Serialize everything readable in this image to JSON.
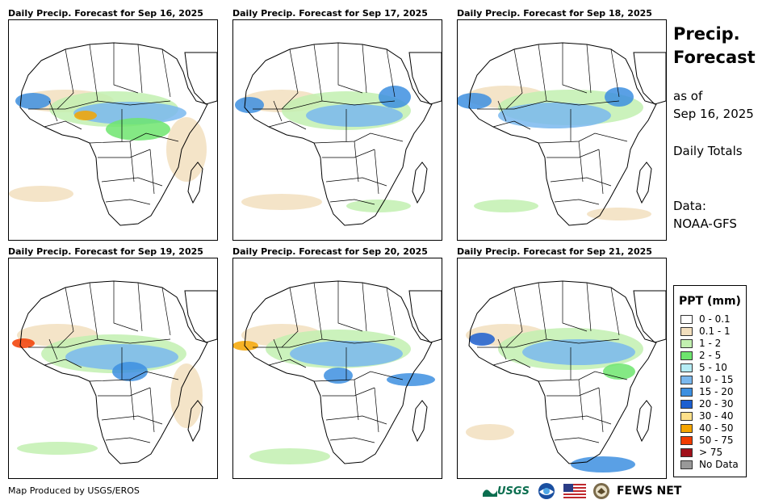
{
  "panels": [
    {
      "title": "Daily Precip. Forecast for Sep 16, 2025"
    },
    {
      "title": "Daily Precip. Forecast for Sep 17, 2025"
    },
    {
      "title": "Daily Precip. Forecast for Sep 18, 2025"
    },
    {
      "title": "Daily Precip. Forecast for Sep 19, 2025"
    },
    {
      "title": "Daily Precip. Forecast for Sep 20, 2025"
    },
    {
      "title": "Daily Precip. Forecast for Sep 21, 2025"
    }
  ],
  "side": {
    "title_line1": "Precip.",
    "title_line2": "Forecast",
    "asof_line1": "as of",
    "asof_line2": "Sep 16, 2025",
    "totals": "Daily Totals",
    "data_line1": "Data:",
    "data_line2": "NOAA-GFS"
  },
  "legend": {
    "title": "PPT (mm)",
    "items": [
      {
        "label": "0 - 0.1",
        "color": "#ffffff"
      },
      {
        "label": "0.1 - 1",
        "color": "#f2dfbe"
      },
      {
        "label": "1 - 2",
        "color": "#c2f0b0"
      },
      {
        "label": "2 - 5",
        "color": "#6ee56e"
      },
      {
        "label": "5 - 10",
        "color": "#b5ecf5"
      },
      {
        "label": "10 - 15",
        "color": "#7ab8ee"
      },
      {
        "label": "15 - 20",
        "color": "#3d8fe0"
      },
      {
        "label": "20 - 30",
        "color": "#1c5fd0"
      },
      {
        "label": "30 - 40",
        "color": "#fde08a"
      },
      {
        "label": "40 - 50",
        "color": "#f5a500"
      },
      {
        "label": "50 - 75",
        "color": "#f23c00"
      },
      {
        "label": "> 75",
        "color": "#a0101a"
      },
      {
        "label": "No Data",
        "color": "#999999"
      }
    ]
  },
  "footer": {
    "credit": "Map Produced by USGS/EROS",
    "usgs_label": "USGS",
    "fews_label": "FEWS NET"
  }
}
